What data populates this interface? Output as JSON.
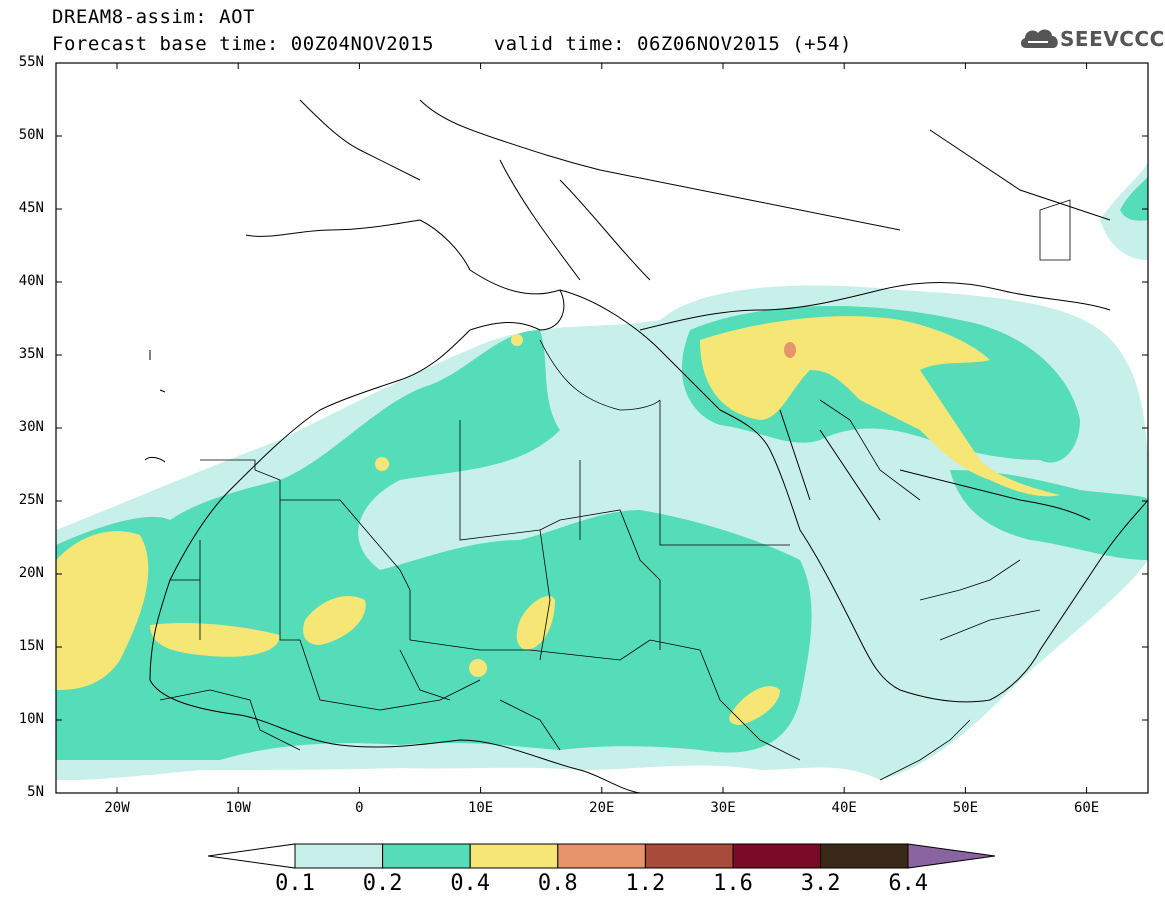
{
  "title_line1": "DREAM8-assim: AOT",
  "title_line2": "Forecast base time: 00Z04NOV2015     valid time: 06Z06NOV2015 (+54)",
  "logo_text": "SEEVCCC",
  "lat_labels": [
    "55N",
    "50N",
    "45N",
    "40N",
    "35N",
    "30N",
    "25N",
    "20N",
    "15N",
    "10N",
    "5N"
  ],
  "lon_labels": [
    "20W",
    "10W",
    "0",
    "10E",
    "20E",
    "30E",
    "40E",
    "50E",
    "60E"
  ],
  "colorbar": {
    "labels": [
      "0.1",
      "0.2",
      "0.4",
      "0.8",
      "1.2",
      "1.6",
      "3.2",
      "6.4"
    ],
    "colors": [
      "#ffffff",
      "#c8f0ea",
      "#55dcb8",
      "#f5e676",
      "#e8946a",
      "#a84a3a",
      "#7a0a28",
      "#3a2818",
      "#8a64a0"
    ]
  },
  "colors": {
    "light": "#c8f0ea",
    "green": "#55dcb8",
    "yellow": "#f5e676",
    "red": "#e8946a"
  }
}
